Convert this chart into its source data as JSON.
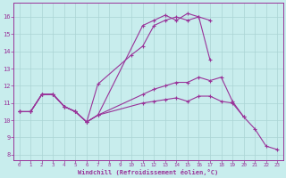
{
  "xlabel": "Windchill (Refroidissement éolien,°C)",
  "xlim": [
    -0.5,
    23.5
  ],
  "ylim": [
    7.7,
    16.8
  ],
  "yticks": [
    8,
    9,
    10,
    11,
    12,
    13,
    14,
    15,
    16
  ],
  "xticks": [
    0,
    1,
    2,
    3,
    4,
    5,
    6,
    7,
    8,
    9,
    10,
    11,
    12,
    13,
    14,
    15,
    16,
    17,
    18,
    19,
    20,
    21,
    22,
    23
  ],
  "bg_color": "#c8eded",
  "grid_color": "#aad4d4",
  "line_color": "#993399",
  "line1_x": [
    0,
    1,
    2,
    3,
    4,
    5,
    6,
    7,
    10,
    11,
    12,
    13,
    14,
    15,
    16,
    17
  ],
  "line1_y": [
    10.5,
    10.5,
    11.5,
    11.5,
    10.8,
    10.5,
    9.9,
    12.1,
    13.8,
    14.3,
    15.5,
    15.8,
    16.0,
    15.8,
    16.0,
    15.8
  ],
  "line2_x": [
    0,
    1,
    2,
    3,
    4,
    5,
    6,
    7,
    11,
    12,
    13,
    14,
    15,
    16,
    17
  ],
  "line2_y": [
    10.5,
    10.5,
    11.5,
    11.5,
    10.8,
    10.5,
    9.9,
    10.3,
    15.5,
    15.8,
    16.1,
    15.8,
    16.2,
    16.0,
    13.5
  ],
  "line3_x": [
    0,
    1,
    2,
    3,
    4,
    5,
    6,
    7,
    11,
    12,
    13,
    14,
    15,
    16,
    17,
    18,
    19,
    20
  ],
  "line3_y": [
    10.5,
    10.5,
    11.5,
    11.5,
    10.8,
    10.5,
    9.9,
    10.3,
    11.5,
    11.8,
    12.0,
    12.2,
    12.2,
    12.5,
    12.3,
    12.5,
    11.1,
    10.2
  ],
  "line4_x": [
    0,
    1,
    2,
    3,
    4,
    5,
    6,
    7,
    11,
    12,
    13,
    14,
    15,
    16,
    17,
    18,
    19,
    20,
    21,
    22,
    23
  ],
  "line4_y": [
    10.5,
    10.5,
    11.5,
    11.5,
    10.8,
    10.5,
    9.9,
    10.3,
    11.0,
    11.1,
    11.2,
    11.3,
    11.1,
    11.4,
    11.4,
    11.1,
    11.0,
    10.2,
    9.5,
    8.5,
    8.3
  ]
}
